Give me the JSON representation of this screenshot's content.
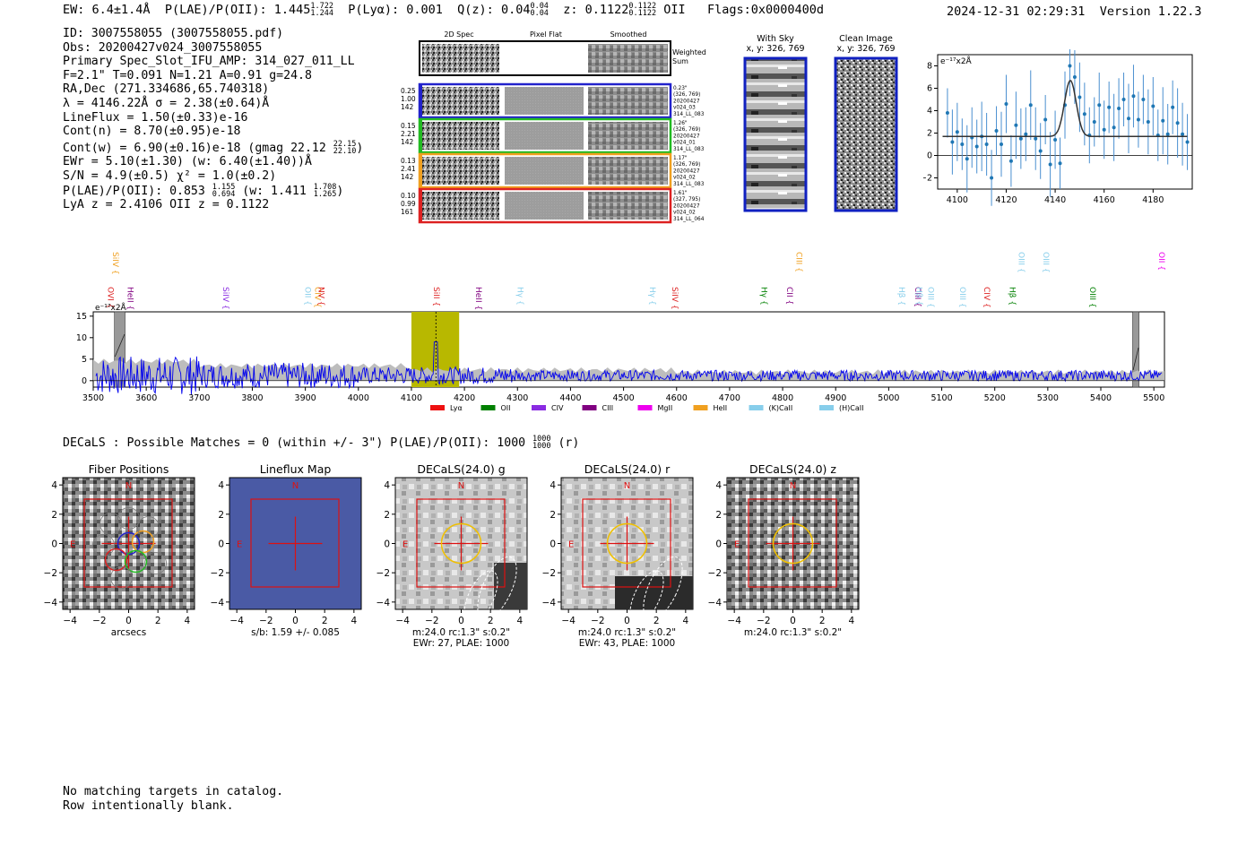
{
  "header": {
    "ew": "EW: 6.4±1.4Å",
    "plae": "P(LAE)/P(OII): 1.445",
    "plae_hi": "1.722",
    "plae_lo": "1.244",
    "plya": "P(Lyα): 0.001",
    "qz": "Q(z): 0.04",
    "qz_hi": "0.04",
    "qz_lo": "0.04",
    "z": "z: 0.1122",
    "z_hi": "0.1122",
    "z_lo": "0.1122",
    "z_line": "OII",
    "flags": "Flags:0x0000400d",
    "timestamp": "2024-12-31 02:29:31",
    "version": "Version 1.22.3"
  },
  "info": {
    "lines": [
      "ID: 3007558055 (3007558055.pdf)",
      "Obs: 20200427v024_3007558055",
      "Primary Spec_Slot_IFU_AMP: 314_027_011_LL",
      "F=2.1\"  T=0.091  N=1.21  A=0.91  g=24.8",
      "RA,Dec (271.334686,65.740318)",
      "λ = 4146.22Å  σ = 2.38(±0.64)Å",
      "LineFlux = 1.50(±0.33)e-16",
      "Cont(n) = 8.70(±0.95)e-18"
    ],
    "contw": "Cont(w) = 6.90(±0.16)e-18 (gmag 22.12",
    "contw_hi": "22.15",
    "contw_lo": "22.10",
    "ewr": "EWr = 5.10(±1.30) (w: 6.40(±1.40))Å",
    "sn": "S/N = 4.9(±0.5)  χ² = 1.0(±0.2)",
    "plae2": "P(LAE)/P(OII): 0.853",
    "plae2_hi": "1.155",
    "plae2_lo": "0.694",
    "plae2_w": "(w: 1.411",
    "plae2_w_hi": "1.708",
    "plae2_w_lo": "1.265",
    "lya": "LyA z = 2.4106  OII z = 0.1122"
  },
  "cutouts": {
    "col_headers": [
      "2D Spec",
      "Pixel Flat",
      "Smoothed"
    ],
    "weighted_label": "Weighted Sum",
    "rows": [
      {
        "left": [
          "0.25",
          "1.00",
          "142"
        ],
        "right": [
          "0.23\"",
          "(326, 769)",
          "20200427",
          "v024_03",
          "314_LL_083"
        ],
        "color": "#2222cc"
      },
      {
        "left": [
          "0.15",
          "2.21",
          "142"
        ],
        "right": [
          "1.26\"",
          "(326, 769)",
          "20200427",
          "v024_01",
          "314_LL_083"
        ],
        "color": "#22bb22"
      },
      {
        "left": [
          "0.13",
          "2.41",
          "142"
        ],
        "right": [
          "1.17\"",
          "(326, 769)",
          "20200427",
          "v024_02",
          "314_LL_083"
        ],
        "color": "#f0a020"
      },
      {
        "left": [
          "0.10",
          "0.99",
          "161"
        ],
        "right": [
          "1.61\"",
          "(327, 795)",
          "20200427",
          "v024_02",
          "314_LL_064"
        ],
        "color": "#dd2222"
      }
    ],
    "with_sky_title": "With Sky",
    "with_sky_coord": "x, y: 326, 769",
    "clean_title": "Clean Image",
    "clean_coord": "x, y: 326, 769"
  },
  "line_fit": {
    "ylabel": "e⁻¹⁷x2Å",
    "xticks": [
      "4100",
      "4120",
      "4140",
      "4160",
      "4180"
    ],
    "yticks": [
      "8",
      "6",
      "4",
      "2",
      "0",
      "−2"
    ]
  },
  "spectrum": {
    "ylabel": "e⁻¹⁷x2Å",
    "xticks": [
      "3500",
      "3600",
      "3700",
      "3800",
      "3900",
      "4000",
      "4100",
      "4200",
      "4300",
      "4400",
      "4500",
      "4600",
      "4700",
      "4800",
      "4900",
      "5000",
      "5100",
      "5200",
      "5300",
      "5400",
      "5500"
    ],
    "yticks": [
      "15",
      "10",
      "5",
      "0"
    ],
    "lines_top": [
      {
        "label": "SiIV",
        "color": "#f0a020"
      },
      {
        "label": "CIII",
        "color": "#f0a020"
      },
      {
        "label": "OIII",
        "color": "#87ceeb"
      },
      {
        "label": "OIII",
        "color": "#87ceeb"
      },
      {
        "label": "OII",
        "color": "#ee00ee"
      }
    ],
    "lines_low": [
      {
        "label": "OVI",
        "color": "#dd2222"
      },
      {
        "label": "HeII",
        "color": "#800080"
      },
      {
        "label": "SiIV",
        "color": "#8a2be2"
      },
      {
        "label": "OII",
        "color": "#87ceeb"
      },
      {
        "label": "CIV",
        "color": "#f0a020"
      },
      {
        "label": "NV",
        "color": "#dd2222"
      },
      {
        "label": "SiII",
        "color": "#dd2222"
      },
      {
        "label": "HeII",
        "color": "#800080"
      },
      {
        "label": "Hγ",
        "color": "#87ceeb"
      },
      {
        "label": "Hγ",
        "color": "#87ceeb"
      },
      {
        "label": "SiIV",
        "color": "#dd2222"
      },
      {
        "label": "Hγ",
        "color": "#008000"
      },
      {
        "label": "CII",
        "color": "#800080"
      },
      {
        "label": "Hβ",
        "color": "#87ceeb"
      },
      {
        "label": "CIII",
        "color": "#800080"
      },
      {
        "label": "Hβ",
        "color": "#87ceeb"
      },
      {
        "label": "OIII",
        "color": "#87ceeb"
      },
      {
        "label": "OIII",
        "color": "#87ceeb"
      },
      {
        "label": "CIV",
        "color": "#dd2222"
      },
      {
        "label": "Hβ",
        "color": "#008000"
      },
      {
        "label": "OIII",
        "color": "#008000"
      }
    ],
    "legend": [
      {
        "label": "Lyα",
        "color": "#ee1111"
      },
      {
        "label": "OII",
        "color": "#008000"
      },
      {
        "label": "CIV",
        "color": "#8a2be2"
      },
      {
        "label": "CIII",
        "color": "#800080"
      },
      {
        "label": "MgII",
        "color": "#ee00ee"
      },
      {
        "label": "HeII",
        "color": "#f0a020"
      },
      {
        "label": "(K)CaII",
        "color": "#87ceeb"
      },
      {
        "label": "(H)CaII",
        "color": "#87ceeb"
      }
    ]
  },
  "decals": {
    "title_text": "DECaLS : Possible Matches = 0 (within +/- 3\")  P(LAE)/P(OII): 1000",
    "title_hi": "1000",
    "title_lo": "1000",
    "title_suffix": "(r)",
    "panels": [
      {
        "title": "Fiber Positions",
        "caption1": "arcsecs",
        "caption2": ""
      },
      {
        "title": "Lineflux Map",
        "caption1": "s/b: 1.59 +/- 0.085",
        "caption2": ""
      },
      {
        "title": "DECaLS(24.0) g",
        "caption1": "m:24.0 rc:1.3\"  s:0.2\"",
        "caption2": "EWr: 27, PLAE: 1000"
      },
      {
        "title": "DECaLS(24.0) r",
        "caption1": "m:24.0 rc:1.3\"  s:0.2\"",
        "caption2": "EWr: 43, PLAE: 1000"
      },
      {
        "title": "DECaLS(24.0) z",
        "caption1": "m:24.0 rc:1.3\"  s:0.2\"",
        "caption2": ""
      }
    ],
    "ticks": [
      "4",
      "2",
      "0",
      "−2",
      "−4"
    ],
    "xticks": [
      "−4",
      "−2",
      "0",
      "2",
      "4"
    ],
    "compass_n": "N",
    "compass_e": "E"
  },
  "footer": {
    "line1": "No matching targets in catalog.",
    "line2": "Row intentionally blank."
  },
  "chart_data": [
    {
      "type": "scatter",
      "title": "",
      "xlabel": "",
      "ylabel": "e⁻¹⁷x2Å",
      "xlim": [
        4092,
        4196
      ],
      "ylim": [
        -3,
        9
      ],
      "x": [
        4096,
        4098,
        4100,
        4102,
        4104,
        4106,
        4108,
        4110,
        4112,
        4114,
        4116,
        4118,
        4120,
        4122,
        4124,
        4126,
        4128,
        4130,
        4132,
        4134,
        4136,
        4138,
        4140,
        4142,
        4144,
        4146,
        4148,
        4150,
        4152,
        4154,
        4156,
        4158,
        4160,
        4162,
        4164,
        4166,
        4168,
        4170,
        4172,
        4174,
        4176,
        4178,
        4180,
        4182,
        4184,
        4186,
        4188,
        4190,
        4192,
        4194
      ],
      "y": [
        3.8,
        1.2,
        2.1,
        1.0,
        -0.3,
        1.6,
        0.8,
        1.7,
        1.0,
        -2.0,
        2.2,
        1.0,
        4.6,
        -0.5,
        2.7,
        1.5,
        1.9,
        4.5,
        1.5,
        0.4,
        3.2,
        -0.8,
        1.4,
        -0.7,
        4.5,
        8.0,
        7.0,
        5.2,
        3.7,
        1.8,
        3.0,
        4.5,
        2.3,
        4.3,
        2.5,
        4.2,
        5.0,
        3.3,
        5.3,
        3.2,
        5.0,
        3.0,
        4.4,
        1.8,
        3.1,
        1.9,
        4.3,
        2.9,
        1.9,
        1.2
      ],
      "fit_continuum": 1.7,
      "fit_peak": 6.7,
      "fit_center": 4146.2
    },
    {
      "type": "line",
      "title": "",
      "xlabel": "",
      "ylabel": "e⁻¹⁷x2Å",
      "xlim": [
        3500,
        5520
      ],
      "ylim": [
        -1.5,
        16
      ],
      "highlight_range": [
        4100,
        4190
      ],
      "line_center": 4146.2,
      "series": []
    }
  ]
}
